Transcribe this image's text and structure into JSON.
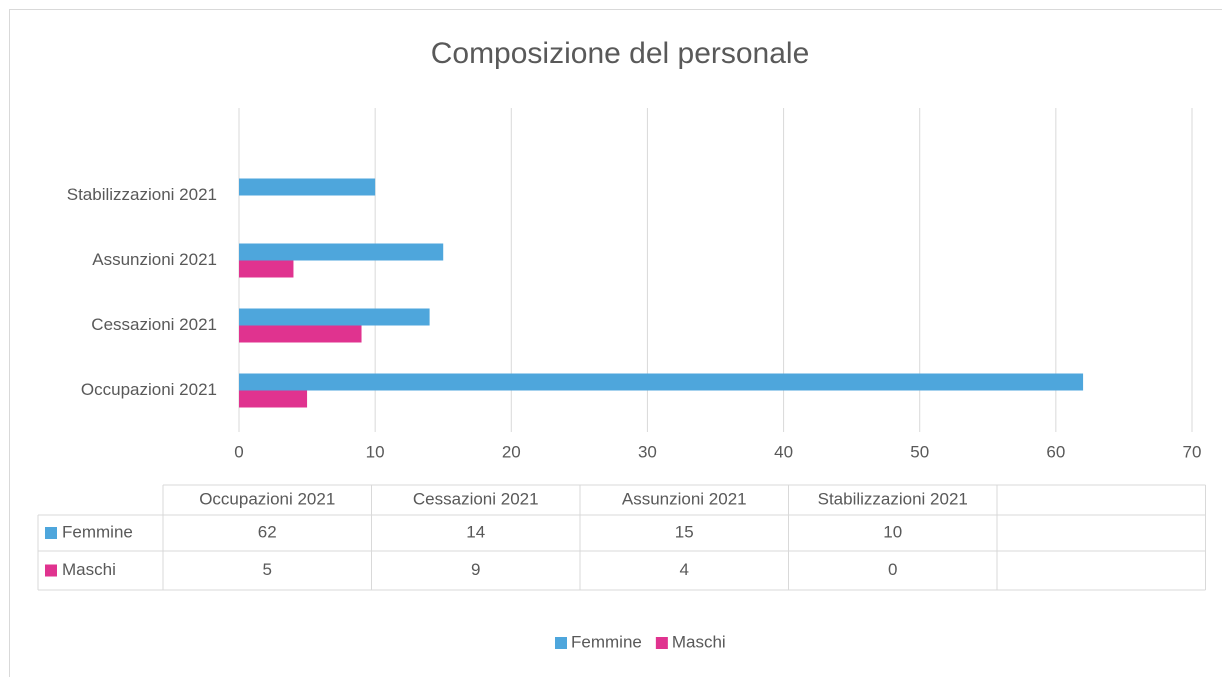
{
  "chart_data": {
    "type": "bar",
    "orientation": "horizontal",
    "title": "Composizione del personale",
    "categories": [
      "Occupazioni 2021",
      "Cessazioni 2021",
      "Assunzioni 2021",
      "Stabilizzazioni 2021"
    ],
    "series": [
      {
        "name": "Femmine",
        "color": "#4ea6dc",
        "values": [
          62,
          14,
          15,
          10
        ]
      },
      {
        "name": "Maschi",
        "color": "#e0338f",
        "values": [
          5,
          9,
          4,
          0
        ]
      }
    ],
    "xlim": [
      0,
      70
    ],
    "xticks": [
      0,
      10,
      20,
      30,
      40,
      50,
      60,
      70
    ],
    "grid": true,
    "data_table": true,
    "legend": "bottom"
  }
}
